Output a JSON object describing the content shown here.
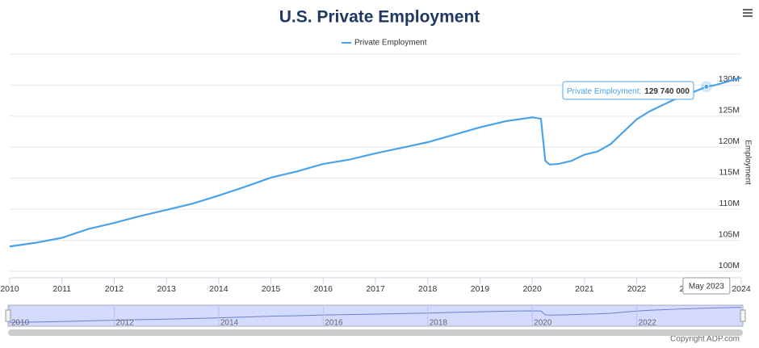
{
  "chart_data": {
    "type": "line",
    "title": "U.S. Private Employment",
    "y_axis_label": "Employment",
    "legend_position": "top",
    "x": [
      "2010-01",
      "2010-07",
      "2011-01",
      "2011-07",
      "2012-01",
      "2012-07",
      "2013-01",
      "2013-07",
      "2014-01",
      "2014-07",
      "2015-01",
      "2015-07",
      "2016-01",
      "2016-07",
      "2017-01",
      "2017-07",
      "2018-01",
      "2018-07",
      "2019-01",
      "2019-07",
      "2020-01",
      "2020-02",
      "2020-03",
      "2020-04",
      "2020-05",
      "2020-07",
      "2020-10",
      "2021-01",
      "2021-04",
      "2021-07",
      "2021-10",
      "2022-01",
      "2022-04",
      "2022-07",
      "2022-10",
      "2023-01",
      "2023-05",
      "2023-07",
      "2023-10",
      "2024-01"
    ],
    "series": [
      {
        "name": "Private Employment",
        "color": "#4aa3ea",
        "values": [
          104000000,
          104600000,
          105400000,
          106800000,
          107800000,
          108900000,
          109900000,
          110900000,
          112200000,
          113600000,
          115100000,
          116100000,
          117300000,
          118000000,
          119000000,
          119900000,
          120800000,
          122000000,
          123200000,
          124200000,
          124800000,
          124700000,
          124600000,
          117800000,
          117200000,
          117300000,
          117800000,
          118800000,
          119300000,
          120500000,
          122500000,
          124500000,
          125800000,
          126800000,
          127800000,
          128600000,
          129740000,
          130000000,
          130600000,
          131200000
        ]
      }
    ],
    "xlim": [
      "2010-01",
      "2024-01"
    ],
    "xticks": [
      "2010",
      "2011",
      "2012",
      "2013",
      "2014",
      "2015",
      "2016",
      "2017",
      "2018",
      "2019",
      "2020",
      "2021",
      "2022",
      "2023",
      "2024"
    ],
    "ylim": [
      100000000,
      135000000
    ],
    "yticks": [
      {
        "value": 100000000,
        "label": "100M"
      },
      {
        "value": 105000000,
        "label": "105M"
      },
      {
        "value": 110000000,
        "label": "110M"
      },
      {
        "value": 115000000,
        "label": "115M"
      },
      {
        "value": 120000000,
        "label": "120M"
      },
      {
        "value": 125000000,
        "label": "125M"
      },
      {
        "value": 130000000,
        "label": "130M"
      }
    ],
    "grid": true,
    "tooltip": {
      "series": "Private Employment:",
      "value": "129 740 000",
      "date": "May 2023"
    },
    "navigator_ticks": [
      "2010",
      "2012",
      "2014",
      "2016",
      "2018",
      "2020",
      "2022"
    ],
    "credits": "Copyright ADP.com"
  }
}
